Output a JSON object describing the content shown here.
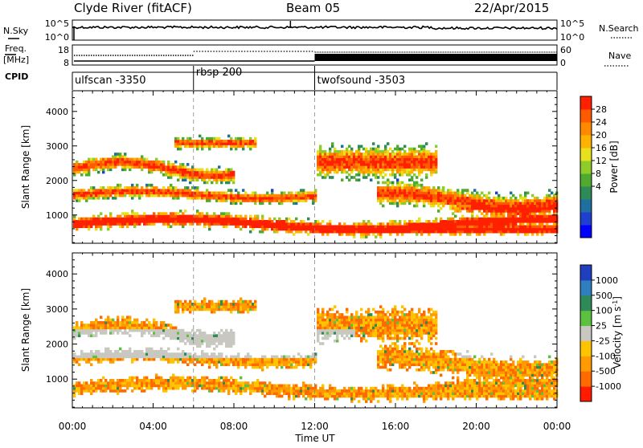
{
  "header": {
    "station": "Clyde River (fitACF)",
    "beam": "Beam 05",
    "date": "22/Apr/2015"
  },
  "side_labels": {
    "nsky": "N.Sky",
    "nsearch": "N.Search",
    "freq_line1": "Freq.",
    "freq_line2": "[MHz]",
    "nave": "Nave",
    "cpid": "CPID"
  },
  "noise_axis": {
    "left_top": "10^5",
    "left_bottom": "10^0",
    "right_top": "10^5",
    "right_bottom": "10^0"
  },
  "freq_axis": {
    "left_top": "18",
    "left_bottom": "8",
    "right_top": "60",
    "right_bottom": "0"
  },
  "cpid_segments": [
    {
      "name": "ulfscan -3350",
      "start_hour": 0
    },
    {
      "name": "rbsp 200",
      "start_hour": 6
    },
    {
      "name": "twofsound -3503",
      "start_hour": 12
    }
  ],
  "chart_data": [
    {
      "type": "heatmap",
      "name": "power",
      "xlabel": "",
      "ylabel": "Slant Range [km]",
      "xlim": [
        0,
        24
      ],
      "ylim": [
        180,
        4600
      ],
      "y_ticks": [
        1000,
        2000,
        3000,
        4000
      ],
      "colorbar_label": "Power [dB]",
      "colorbar_ticks": [
        "28",
        "24",
        "20",
        "16",
        "12",
        "8",
        "4"
      ],
      "colors": [
        "#0000ff",
        "#1e3fd0",
        "#1f6fa0",
        "#2e8b57",
        "#4faa2e",
        "#8fcc2a",
        "#e6e01e",
        "#ffb200",
        "#ff8a00",
        "#ff5a00",
        "#ff2000"
      ]
    },
    {
      "type": "heatmap",
      "name": "velocity",
      "xlabel": "Time UT",
      "ylabel": "Slant Range [km]",
      "xlim": [
        0,
        24
      ],
      "ylim": [
        180,
        4600
      ],
      "y_ticks": [
        1000,
        2000,
        3000,
        4000
      ],
      "x_ticks": [
        "00:00",
        "04:00",
        "08:00",
        "12:00",
        "16:00",
        "20:00",
        "00:00"
      ],
      "colorbar_label": "Velocity [m s^-1]",
      "colorbar_ticks": [
        "1000",
        "500",
        "100",
        "25",
        "-25",
        "-100",
        "-500",
        "-1000"
      ],
      "colors": [
        "#1f3fbf",
        "#2f7fbf",
        "#2e8b57",
        "#5cc040",
        "#c8c8c0",
        "#ffc400",
        "#ff9a00",
        "#ff6a00",
        "#ff1a00"
      ]
    }
  ]
}
